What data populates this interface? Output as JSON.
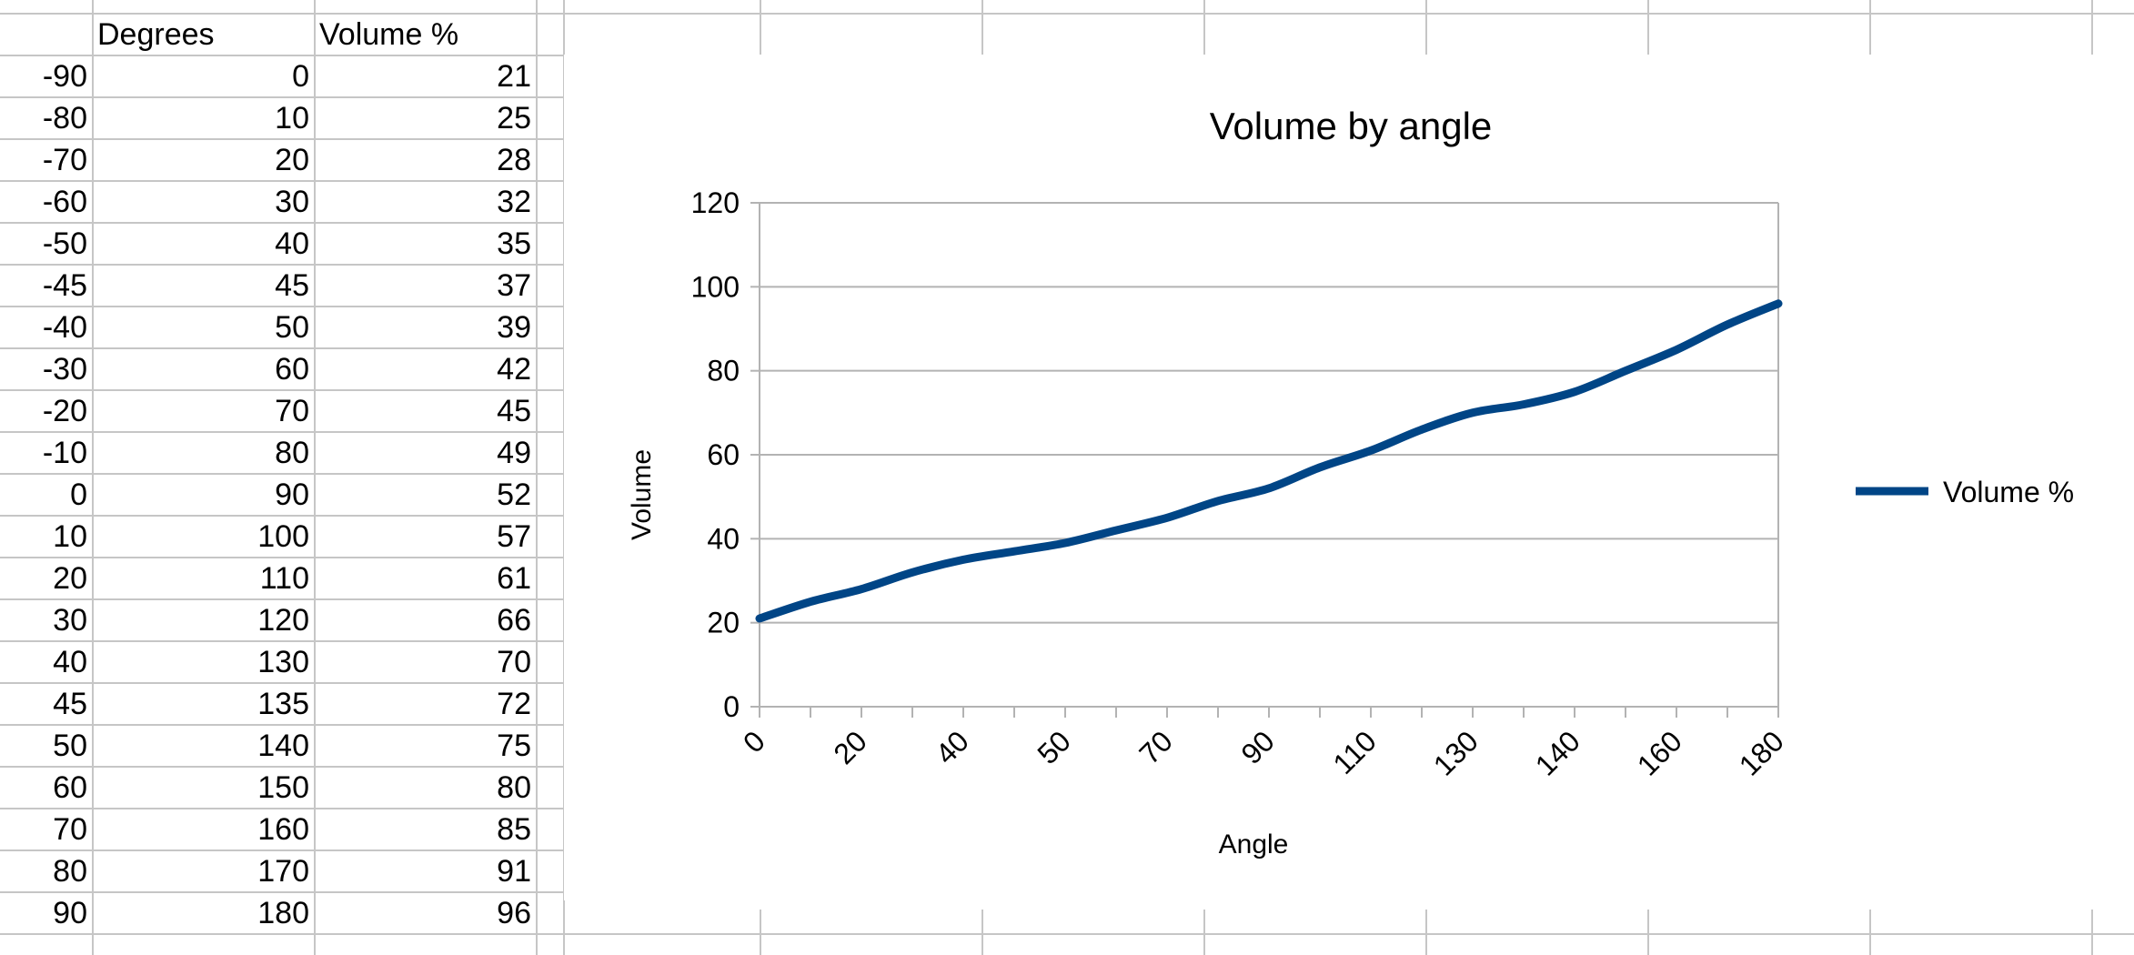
{
  "sheet": {
    "headers": [
      "",
      "Degrees",
      "Volume %"
    ],
    "rows": [
      [
        "-90",
        "0",
        "21"
      ],
      [
        "-80",
        "10",
        "25"
      ],
      [
        "-70",
        "20",
        "28"
      ],
      [
        "-60",
        "30",
        "32"
      ],
      [
        "-50",
        "40",
        "35"
      ],
      [
        "-45",
        "45",
        "37"
      ],
      [
        "-40",
        "50",
        "39"
      ],
      [
        "-30",
        "60",
        "42"
      ],
      [
        "-20",
        "70",
        "45"
      ],
      [
        "-10",
        "80",
        "49"
      ],
      [
        "0",
        "90",
        "52"
      ],
      [
        "10",
        "100",
        "57"
      ],
      [
        "20",
        "110",
        "61"
      ],
      [
        "30",
        "120",
        "66"
      ],
      [
        "40",
        "130",
        "70"
      ],
      [
        "45",
        "135",
        "72"
      ],
      [
        "50",
        "140",
        "75"
      ],
      [
        "60",
        "150",
        "80"
      ],
      [
        "70",
        "160",
        "85"
      ],
      [
        "80",
        "170",
        "91"
      ],
      [
        "90",
        "180",
        "96"
      ]
    ]
  },
  "chart_data": {
    "type": "line",
    "title": "Volume by angle",
    "xlabel": "Angle",
    "ylabel": "Volume",
    "categories": [
      "0",
      "10",
      "20",
      "30",
      "40",
      "45",
      "50",
      "60",
      "70",
      "80",
      "90",
      "100",
      "110",
      "120",
      "130",
      "135",
      "140",
      "150",
      "160",
      "170",
      "180"
    ],
    "tick_labels_shown": [
      "0",
      "20",
      "40",
      "50",
      "70",
      "90",
      "110",
      "130",
      "140",
      "160",
      "180"
    ],
    "series": [
      {
        "name": "Volume %",
        "color": "#004586",
        "values": [
          21,
          25,
          28,
          32,
          35,
          37,
          39,
          42,
          45,
          49,
          52,
          57,
          61,
          66,
          70,
          72,
          75,
          80,
          85,
          91,
          96
        ]
      }
    ],
    "ylim": [
      0,
      120
    ],
    "yticks": [
      0,
      20,
      40,
      60,
      80,
      100,
      120
    ],
    "grid": "horizontal",
    "legend": "right",
    "smooth": true
  }
}
